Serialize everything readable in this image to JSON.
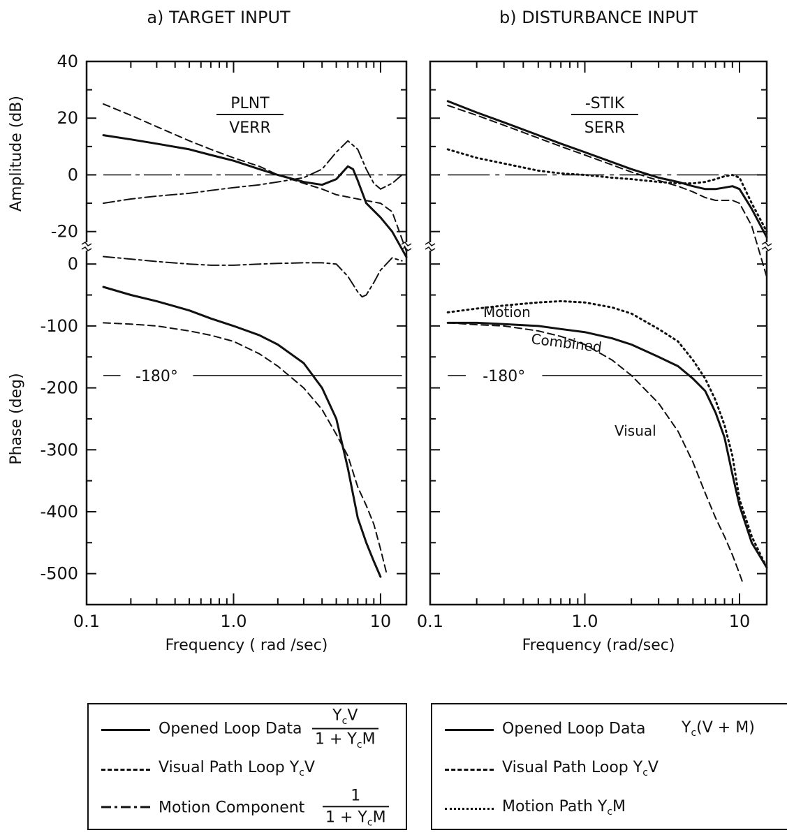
{
  "panels": [
    {
      "heading": "a) TARGET INPUT",
      "ratio_numerator": "PLNT",
      "ratio_denominator": "VERR",
      "x_tick_labels": [
        "0.1",
        "1.0",
        "10"
      ],
      "xlabel": "Frequency ( rad /sec)",
      "amp_tick_labels": [
        "40",
        "20",
        "0",
        "-20"
      ],
      "phase_tick_labels": [
        "0",
        "-100",
        "-200",
        "-300",
        "-400",
        "-500"
      ],
      "annotations": [
        "-180°"
      ]
    },
    {
      "heading": "b) DISTURBANCE INPUT",
      "ratio_numerator": "-STIK",
      "ratio_denominator": "SERR",
      "x_tick_labels": [
        "0.1",
        "1.0",
        "10"
      ],
      "xlabel": "Frequency (rad/sec)",
      "annotations": [
        "-180°",
        "Motion",
        "Combined",
        "Visual"
      ]
    }
  ],
  "amp_ylabel": "Amplitude (dB)",
  "phase_ylabel": "Phase (deg)",
  "legends": [
    {
      "items": [
        {
          "style": "solid",
          "label": "Opened Loop Data",
          "formula_num": "Y",
          "formula_num_sub": "c",
          "formula_num_tail": "V",
          "formula_den": "1 + Y",
          "formula_den_sub": "c",
          "formula_den_tail": "M"
        },
        {
          "style": "dashed",
          "label": "Visual Path Loop Y",
          "label_sub": "c",
          "label_tail": "V"
        },
        {
          "style": "dashdot",
          "label": "Motion Component",
          "formula_num": "1",
          "formula_den": "1 + Y",
          "formula_den_sub": "c",
          "formula_den_tail": "M"
        }
      ]
    },
    {
      "items": [
        {
          "style": "solid",
          "label": "Opened Loop Data",
          "formula": "Y",
          "formula_sub": "c",
          "formula_tail": "(V + M)"
        },
        {
          "style": "dashed",
          "label": "Visual Path Loop Y",
          "label_sub": "c",
          "label_tail": "V"
        },
        {
          "style": "dotted",
          "label": "Motion Path Y",
          "label_sub": "c",
          "label_tail": "M"
        }
      ]
    }
  ],
  "chart_data": [
    {
      "type": "line",
      "title": "a) TARGET INPUT",
      "xlabel": "Frequency ( rad /sec)",
      "xscale": "log",
      "xlim": [
        0.1,
        15
      ],
      "amplitude_ylabel": "Amplitude (dB)",
      "amplitude_ylim": [
        -25,
        40
      ],
      "phase_ylabel": "Phase (deg)",
      "phase_ylim": [
        -550,
        25
      ],
      "amplitude_series": [
        {
          "name": "Opened Loop Data",
          "style": "solid",
          "x": [
            0.13,
            0.2,
            0.3,
            0.5,
            0.7,
            1.0,
            1.5,
            2.0,
            3.0,
            4.0,
            5.0,
            6.0,
            6.5,
            7.0,
            8.0,
            10.0,
            12.0,
            15.0
          ],
          "y": [
            14,
            12.5,
            11,
            9,
            7,
            5,
            2,
            0,
            -2.5,
            -3.5,
            -1.5,
            3,
            2,
            -2,
            -10,
            -15,
            -20,
            -29
          ]
        },
        {
          "name": "Visual Path Loop YcV",
          "style": "dashed",
          "x": [
            0.13,
            0.2,
            0.3,
            0.5,
            0.7,
            1.0,
            1.5,
            2.0,
            3.0,
            4.0,
            5.0,
            7.0,
            10.0,
            12.0,
            15.0
          ],
          "y": [
            25,
            21,
            17,
            12,
            9,
            6,
            3,
            0,
            -3,
            -5,
            -7,
            -8.5,
            -10,
            -13,
            -27
          ]
        },
        {
          "name": "Motion Component 1/(1+YcM)",
          "style": "dashdot",
          "x": [
            0.13,
            0.2,
            0.3,
            0.5,
            0.7,
            1.0,
            1.5,
            2.0,
            3.0,
            4.0,
            5.0,
            6.0,
            7.0,
            8.0,
            9.0,
            10.0,
            12.0,
            14.0
          ],
          "y": [
            -10,
            -8.5,
            -7.5,
            -6.5,
            -5.5,
            -4.5,
            -3.5,
            -2.5,
            -1,
            2,
            8,
            12,
            9,
            2,
            -3,
            -5,
            -3,
            0
          ]
        }
      ],
      "phase_series": [
        {
          "name": "Opened Loop Data",
          "style": "solid",
          "x": [
            0.13,
            0.2,
            0.3,
            0.5,
            0.7,
            1.0,
            1.5,
            2.0,
            3.0,
            4.0,
            5.0,
            6.0,
            7.0,
            8.0,
            9.0,
            10.0
          ],
          "y": [
            -37,
            -50,
            -60,
            -75,
            -88,
            -100,
            -115,
            -130,
            -160,
            -200,
            -250,
            -330,
            -410,
            -450,
            -480,
            -505
          ]
        },
        {
          "name": "Visual Path Loop YcV",
          "style": "dashed",
          "x": [
            0.13,
            0.2,
            0.3,
            0.5,
            0.7,
            1.0,
            1.5,
            2.0,
            3.0,
            4.0,
            5.0,
            6.0,
            7.0,
            8.0,
            9.0,
            10.0,
            11.0
          ],
          "y": [
            -95,
            -97,
            -100,
            -108,
            -115,
            -125,
            -145,
            -165,
            -200,
            -235,
            -275,
            -310,
            -360,
            -390,
            -420,
            -460,
            -500
          ]
        },
        {
          "name": "Motion Component 1/(1+YcM)",
          "style": "dashdot",
          "x": [
            0.13,
            0.2,
            0.3,
            0.5,
            0.7,
            1.0,
            1.5,
            2.0,
            3.0,
            4.0,
            5.0,
            6.0,
            7.0,
            7.5,
            8.0,
            9.0,
            10.0,
            12.0,
            14.0
          ],
          "y": [
            12,
            8,
            4,
            0,
            -2,
            -2,
            0,
            1,
            2,
            2,
            0,
            -20,
            -45,
            -53,
            -50,
            -30,
            -10,
            10,
            5
          ]
        }
      ],
      "reference_lines": [
        {
          "axis": "amplitude",
          "y": 0
        },
        {
          "axis": "phase",
          "y": -180,
          "label": "-180°"
        }
      ]
    },
    {
      "type": "line",
      "title": "b) DISTURBANCE INPUT",
      "xlabel": "Frequency (rad/sec)",
      "xscale": "log",
      "xlim": [
        0.1,
        15
      ],
      "amplitude_ylim": [
        -25,
        40
      ],
      "phase_ylim": [
        -550,
        25
      ],
      "amplitude_series": [
        {
          "name": "Opened Loop Data Yc(V+M)",
          "style": "solid",
          "x": [
            0.13,
            0.2,
            0.3,
            0.5,
            0.7,
            1.0,
            1.5,
            2.0,
            3.0,
            4.0,
            5.0,
            6.0,
            7.0,
            8.0,
            9.0,
            10.0,
            12.0,
            15.0
          ],
          "y": [
            26,
            22,
            18.5,
            14,
            11,
            8,
            4.5,
            2,
            -1,
            -2.5,
            -4,
            -5,
            -5,
            -4.5,
            -4,
            -5,
            -12,
            -22
          ]
        },
        {
          "name": "Visual Path Loop YcV",
          "style": "dashed",
          "x": [
            0.13,
            0.2,
            0.3,
            0.5,
            0.7,
            1.0,
            1.5,
            2.0,
            3.0,
            4.0,
            5.0,
            6.0,
            7.0,
            8.0,
            9.0,
            10.0,
            12.0,
            15.0
          ],
          "y": [
            24.5,
            21,
            17.5,
            13,
            10,
            7,
            3.5,
            1,
            -2,
            -4,
            -6,
            -8,
            -9,
            -9,
            -9,
            -10,
            -18,
            -36
          ]
        },
        {
          "name": "Motion Path YcM",
          "style": "dotted",
          "x": [
            0.13,
            0.2,
            0.3,
            0.5,
            0.7,
            1.0,
            1.5,
            2.0,
            3.0,
            4.0,
            5.0,
            6.0,
            7.0,
            8.0,
            9.0,
            10.0,
            12.0,
            15.0
          ],
          "y": [
            9,
            6,
            4,
            1.5,
            0.5,
            0,
            -1,
            -1.5,
            -2.5,
            -3,
            -3,
            -2.5,
            -1.5,
            -0.5,
            0,
            -1,
            -10,
            -20
          ]
        }
      ],
      "phase_series": [
        {
          "name": "Opened Loop Data Yc(V+M)",
          "style": "solid",
          "x": [
            0.13,
            0.2,
            0.3,
            0.5,
            0.7,
            1.0,
            1.5,
            2.0,
            3.0,
            4.0,
            5.0,
            6.0,
            7.0,
            8.0,
            9.0,
            10.0,
            12.0,
            15.0
          ],
          "y": [
            -95,
            -95,
            -97,
            -100,
            -105,
            -110,
            -120,
            -130,
            -150,
            -165,
            -185,
            -205,
            -240,
            -280,
            -340,
            -390,
            -450,
            -490
          ]
        },
        {
          "name": "Visual Path Loop YcV",
          "style": "dashed",
          "x": [
            0.13,
            0.2,
            0.3,
            0.5,
            0.7,
            1.0,
            1.5,
            2.0,
            3.0,
            4.0,
            5.0,
            6.0,
            7.0,
            8.0,
            9.0,
            10.0,
            10.5
          ],
          "y": [
            -95,
            -98,
            -100,
            -108,
            -117,
            -130,
            -155,
            -180,
            -225,
            -270,
            -320,
            -370,
            -410,
            -440,
            -470,
            -500,
            -515
          ]
        },
        {
          "name": "Motion Path YcM",
          "style": "dotted",
          "x": [
            0.13,
            0.2,
            0.3,
            0.5,
            0.7,
            1.0,
            1.5,
            2.0,
            3.0,
            4.0,
            5.0,
            6.0,
            7.0,
            8.0,
            9.0,
            10.0,
            12.0,
            15.0
          ],
          "y": [
            -78,
            -72,
            -67,
            -62,
            -60,
            -62,
            -70,
            -80,
            -105,
            -125,
            -155,
            -185,
            -220,
            -260,
            -310,
            -380,
            -440,
            -490
          ]
        }
      ],
      "reference_lines": [
        {
          "axis": "amplitude",
          "y": 0
        },
        {
          "axis": "phase",
          "y": -180,
          "label": "-180°"
        }
      ]
    }
  ]
}
